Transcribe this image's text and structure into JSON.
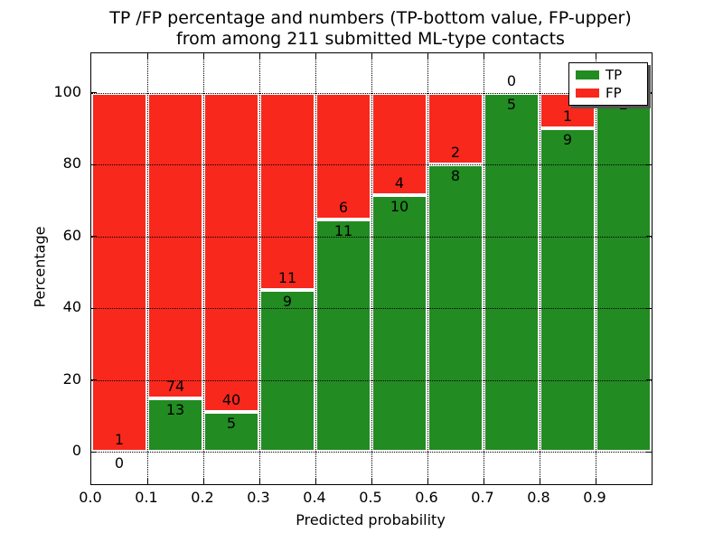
{
  "title": {
    "line1": "TP /FP percentage and numbers (TP-bottom value, FP-upper)",
    "line2": "from among 211 submitted ML-type contacts"
  },
  "axes": {
    "xlabel": "Predicted probability",
    "ylabel": "Percentage",
    "xtick_labels": [
      "0.0",
      "0.1",
      "0.2",
      "0.3",
      "0.4",
      "0.5",
      "0.6",
      "0.7",
      "0.8",
      "0.9"
    ],
    "ytick_values": [
      0,
      20,
      40,
      60,
      80,
      100
    ],
    "xlim": [
      0.0,
      1.0
    ],
    "ylim": [
      -9,
      111
    ],
    "grid": "dotted"
  },
  "legend": {
    "items": [
      {
        "label": "TP",
        "color": "#228b22"
      },
      {
        "label": "FP",
        "color": "#f8281c"
      }
    ]
  },
  "colors": {
    "tp": "#228b22",
    "fp": "#f8281c",
    "bar_edge": "#ffffff",
    "grid": "#000000",
    "background": "#ffffff"
  },
  "chart_data": {
    "type": "bar",
    "stacked": true,
    "normalized": "percent",
    "title": "TP /FP percentage and numbers (TP-bottom value, FP-upper) from among 211 submitted ML-type contacts",
    "xlabel": "Predicted probability",
    "ylabel": "Percentage",
    "total_contacts": 211,
    "bin_edges": [
      0.0,
      0.1,
      0.2,
      0.3,
      0.4,
      0.5,
      0.6,
      0.7,
      0.8,
      0.9,
      1.0
    ],
    "series": [
      {
        "name": "TP",
        "counts": [
          0,
          13,
          5,
          9,
          11,
          10,
          8,
          5,
          9,
          2
        ]
      },
      {
        "name": "FP",
        "counts": [
          1,
          74,
          40,
          11,
          6,
          4,
          2,
          0,
          1,
          0
        ]
      }
    ],
    "tp_percent": [
      0.0,
      14.9,
      11.1,
      45.0,
      64.7,
      71.4,
      80.0,
      100.0,
      90.0,
      100.0
    ],
    "bar_width": 0.1
  }
}
